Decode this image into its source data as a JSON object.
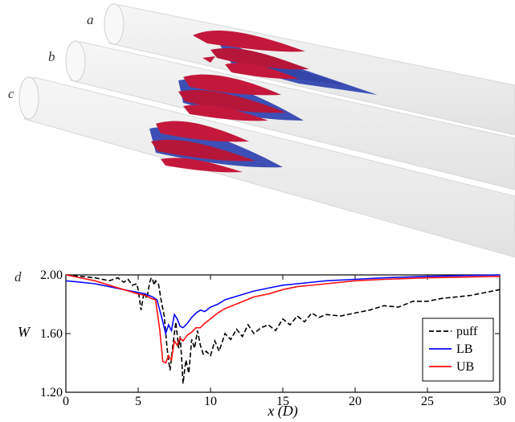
{
  "panel_labels": {
    "top_a": "a",
    "top_b": "b",
    "top_c": "c",
    "bottom_d": "d"
  },
  "colors": {
    "pipe": "#efefef",
    "red_structure": "#c3183c",
    "blue_structure": "#3d4fb4"
  },
  "chart_data": {
    "type": "line",
    "xlabel": "x (D)",
    "ylabel": "W",
    "xlim": [
      0,
      30
    ],
    "ylim": [
      1.2,
      2.0
    ],
    "x_ticks": [
      0,
      5,
      10,
      15,
      20,
      25,
      30
    ],
    "y_ticks": [
      1.2,
      1.6,
      2.0
    ],
    "y_tick_labels": [
      "1.20",
      "1.60",
      "2.00"
    ],
    "grid": false,
    "legend_position": "bottom-right",
    "series": [
      {
        "name": "puff",
        "color": "#000000",
        "dash": "dashed",
        "x": [
          0,
          1,
          2,
          3,
          3.6,
          4.0,
          4.3,
          4.6,
          4.9,
          5.0,
          5.2,
          5.4,
          5.6,
          5.8,
          5.9,
          6.0,
          6.1,
          6.2,
          6.4,
          6.6,
          6.8,
          7.0,
          7.1,
          7.2,
          7.4,
          7.6,
          7.8,
          7.9,
          8.0,
          8.1,
          8.3,
          8.5,
          8.7,
          8.9,
          9.1,
          9.3,
          9.5,
          9.7,
          10.0,
          10.3,
          10.6,
          11.0,
          11.4,
          11.8,
          12.2,
          12.6,
          13.0,
          13.5,
          14.0,
          14.5,
          15.0,
          15.5,
          16.0,
          16.5,
          17.0,
          17.5,
          18.0,
          19.0,
          20.0,
          21.0,
          22.0,
          23.0,
          24.0,
          25.0,
          26.0,
          27.0,
          28.0,
          29.0,
          30.0
        ],
        "y": [
          2.0,
          1.99,
          1.98,
          1.96,
          1.98,
          1.95,
          1.97,
          1.93,
          1.94,
          1.9,
          1.76,
          1.88,
          1.84,
          1.95,
          1.98,
          1.97,
          1.93,
          1.96,
          1.94,
          1.82,
          1.72,
          1.5,
          1.42,
          1.35,
          1.52,
          1.68,
          1.5,
          1.58,
          1.44,
          1.26,
          1.42,
          1.33,
          1.56,
          1.5,
          1.62,
          1.52,
          1.46,
          1.48,
          1.45,
          1.55,
          1.48,
          1.6,
          1.56,
          1.63,
          1.58,
          1.66,
          1.6,
          1.64,
          1.66,
          1.62,
          1.7,
          1.66,
          1.72,
          1.68,
          1.74,
          1.71,
          1.73,
          1.72,
          1.74,
          1.76,
          1.79,
          1.78,
          1.82,
          1.82,
          1.84,
          1.85,
          1.86,
          1.88,
          1.9
        ]
      },
      {
        "name": "LB",
        "color": "#0a0aff",
        "dash": "solid",
        "x": [
          0,
          1,
          2,
          3,
          4,
          5,
          5.5,
          6.0,
          6.3,
          6.6,
          6.9,
          7.1,
          7.3,
          7.5,
          7.7,
          7.9,
          8.1,
          8.4,
          8.7,
          9.0,
          9.3,
          9.6,
          10.0,
          10.5,
          11.0,
          12.0,
          13.0,
          14.0,
          15.0,
          16.0,
          18.0,
          20.0,
          22.0,
          25.0,
          30.0
        ],
        "y": [
          1.96,
          1.95,
          1.94,
          1.92,
          1.9,
          1.88,
          1.87,
          1.85,
          1.83,
          1.72,
          1.6,
          1.66,
          1.62,
          1.73,
          1.7,
          1.65,
          1.64,
          1.67,
          1.71,
          1.74,
          1.76,
          1.75,
          1.78,
          1.8,
          1.83,
          1.86,
          1.89,
          1.91,
          1.93,
          1.94,
          1.96,
          1.97,
          1.98,
          1.99,
          2.0
        ]
      },
      {
        "name": "UB",
        "color": "#ff1010",
        "dash": "solid",
        "x": [
          0,
          1,
          2,
          3,
          4,
          5,
          5.5,
          5.9,
          6.2,
          6.5,
          6.7,
          6.9,
          7.1,
          7.3,
          7.5,
          7.7,
          7.9,
          8.1,
          8.4,
          8.7,
          9.0,
          9.3,
          9.6,
          10.0,
          10.5,
          11.0,
          12.0,
          13.0,
          14.0,
          15.0,
          16.0,
          18.0,
          20.0,
          22.0,
          25.0,
          30.0
        ],
        "y": [
          2.0,
          1.98,
          1.96,
          1.93,
          1.9,
          1.87,
          1.86,
          1.84,
          1.83,
          1.62,
          1.41,
          1.4,
          1.45,
          1.42,
          1.55,
          1.52,
          1.57,
          1.55,
          1.59,
          1.61,
          1.64,
          1.64,
          1.67,
          1.7,
          1.74,
          1.77,
          1.81,
          1.85,
          1.87,
          1.9,
          1.92,
          1.94,
          1.96,
          1.97,
          1.98,
          1.99
        ]
      }
    ]
  }
}
